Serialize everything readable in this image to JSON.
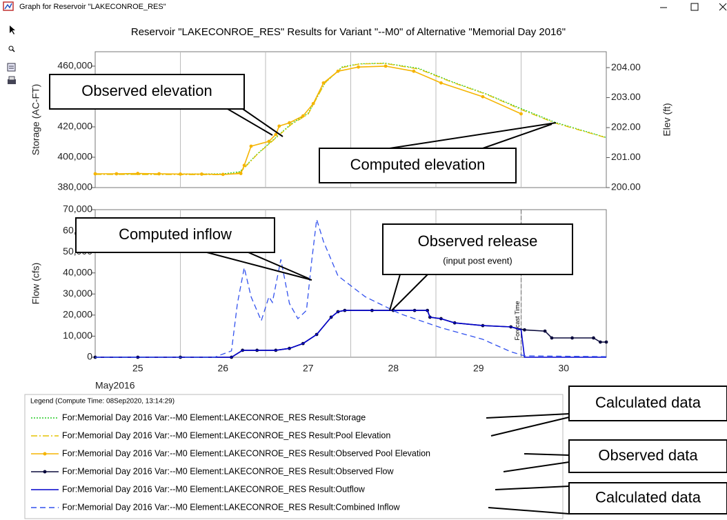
{
  "window": {
    "title": "Graph for Reservoir \"LAKECONROE_RES\""
  },
  "chart_data": [
    {
      "type": "line",
      "title": "Reservoir \"LAKECONROE_RES\" Results for Variant \"--M0\" of Alternative \"Memorial Day 2016\"",
      "ylabel": "Storage (AC-FT)",
      "y2label": "Elev (ft)",
      "xlim": [
        25,
        31
      ],
      "xgrid": [
        26,
        27,
        28,
        29,
        30
      ],
      "ylim": [
        380000,
        469500
      ],
      "yticks": [
        {
          "value": 380000,
          "label": "380,000"
        },
        {
          "value": 400000,
          "label": "400,000"
        },
        {
          "value": 420000,
          "label": "420,000"
        },
        {
          "value": 440000,
          "label": "440,000"
        },
        {
          "value": 460000,
          "label": "460,000"
        }
      ],
      "y2lim": [
        200,
        204.53
      ],
      "y2ticks": [
        {
          "value": 200,
          "label": "200.00"
        },
        {
          "value": 201,
          "label": "201.00"
        },
        {
          "value": 202,
          "label": "202.00"
        },
        {
          "value": 203,
          "label": "203.00"
        },
        {
          "value": 204,
          "label": "204.00"
        }
      ],
      "series": [
        {
          "name": "For:Memorial Day 2016 Var:--M0 Element:LAKECONROE_RES Result:Storage",
          "color": "#22cc22",
          "style": "dotted",
          "marker": false,
          "x": [
            25,
            26.5,
            26.7,
            26.9,
            27.1,
            27.3,
            27.5,
            27.7,
            27.9,
            28.1,
            28.4,
            28.8,
            29.2,
            29.6,
            30.0,
            30.4,
            31.0
          ],
          "values": [
            389000,
            389000,
            390500,
            402000,
            412000,
            422000,
            429000,
            449000,
            459500,
            461500,
            462000,
            458500,
            449500,
            441500,
            432000,
            423000,
            413000
          ]
        },
        {
          "name": "For:Memorial Day 2016 Var:--M0 Element:LAKECONROE_RES Result:Pool Elevation",
          "color": "#e6c200",
          "style": "dashdot",
          "marker": false,
          "axis": "y2",
          "x": [
            25,
            26.5,
            26.7,
            26.9,
            27.1,
            27.3,
            27.5,
            27.7,
            27.9,
            28.1,
            28.4,
            28.8,
            29.2,
            29.6,
            30.0,
            30.4,
            31.0
          ],
          "values": [
            200.44,
            200.43,
            200.5,
            201.1,
            201.6,
            202.1,
            202.45,
            203.5,
            204.0,
            204.12,
            204.14,
            203.95,
            203.5,
            203.1,
            202.6,
            202.15,
            201.66
          ]
        },
        {
          "name": "For:Memorial Day 2016 Var:--M0 Element:LAKECONROE_RES Result:Observed Pool Elevation",
          "color": "#f5b400",
          "style": "solid",
          "marker": true,
          "axis": "y2",
          "x": [
            25,
            25.25,
            25.5,
            25.75,
            26,
            26.25,
            26.5,
            26.71,
            26.75,
            26.83,
            27.04,
            27.12,
            27.16,
            27.28,
            27.44,
            27.56,
            27.68,
            27.85,
            28.09,
            28.41,
            28.74,
            29.06,
            29.55,
            30.0
          ],
          "values": [
            200.46,
            200.46,
            200.47,
            200.46,
            200.45,
            200.45,
            200.44,
            200.47,
            200.74,
            201.38,
            201.54,
            201.77,
            202.05,
            202.16,
            202.39,
            202.8,
            203.49,
            203.88,
            204.02,
            204.05,
            203.88,
            203.49,
            203.03,
            202.46
          ]
        }
      ]
    },
    {
      "type": "line",
      "ylabel": "Flow (cfs)",
      "xlabel": "May2016",
      "xlim": [
        25,
        31
      ],
      "xgrid": [
        26,
        27,
        28,
        29,
        30
      ],
      "xticks": [
        {
          "value": 25.5,
          "label": "25"
        },
        {
          "value": 26.5,
          "label": "26"
        },
        {
          "value": 27.5,
          "label": "27"
        },
        {
          "value": 28.5,
          "label": "28"
        },
        {
          "value": 29.5,
          "label": "29"
        },
        {
          "value": 30.5,
          "label": "30"
        }
      ],
      "ylim": [
        0,
        70000
      ],
      "yticks": [
        0,
        {
          "value": 10000,
          "label": "10,000"
        },
        {
          "value": 20000,
          "label": "20,000"
        },
        {
          "value": 30000,
          "label": "30,000"
        },
        {
          "value": 40000,
          "label": "40,000"
        },
        {
          "value": 50000,
          "label": "50,000"
        },
        {
          "value": 60000,
          "label": "60,000"
        },
        {
          "value": 70000,
          "label": "70,000"
        }
      ],
      "markers": [
        {
          "x": 30,
          "label": "Forecast Time"
        }
      ],
      "series": [
        {
          "name": "For:Memorial Day 2016 Var:--M0 Element:LAKECONROE_RES Result:Observed Flow",
          "color": "#0a0a3c",
          "style": "solid",
          "marker": true,
          "x": [
            25,
            25.5,
            26,
            26.6,
            26.73,
            26.9,
            27.12,
            27.28,
            27.44,
            27.6,
            27.77,
            27.85,
            27.93,
            28.25,
            28.5,
            28.75,
            28.9,
            28.93,
            29.06,
            29.22,
            29.55,
            29.88,
            30.04,
            30.28,
            30.36,
            30.6,
            30.85,
            30.93,
            31
          ],
          "values": [
            0,
            0,
            0,
            0,
            3300,
            3300,
            3300,
            4200,
            6500,
            10800,
            19000,
            21600,
            22200,
            22200,
            22200,
            22200,
            22200,
            19000,
            18300,
            16300,
            15000,
            14400,
            13000,
            12400,
            9150,
            9150,
            9150,
            7200,
            7200
          ]
        },
        {
          "name": "For:Memorial Day 2016 Var:--M0 Element:LAKECONROE_RES Result:Outflow",
          "color": "#0000cc",
          "style": "solid",
          "marker": false,
          "x": [
            25,
            26.6,
            26.73,
            27.12,
            27.28,
            27.44,
            27.6,
            27.77,
            27.85,
            27.93,
            28.9,
            28.93,
            29.06,
            29.22,
            29.55,
            29.88,
            30.0,
            30.04,
            31
          ],
          "values": [
            0,
            0,
            3300,
            3300,
            4200,
            6500,
            10800,
            19000,
            21600,
            22200,
            22200,
            19000,
            18300,
            16300,
            15000,
            14400,
            13000,
            0,
            0
          ]
        },
        {
          "name": "For:Memorial Day 2016 Var:--M0 Element:LAKECONROE_RES Result:Combined Inflow",
          "color": "#3050ee",
          "style": "dashed",
          "marker": false,
          "x": [
            25,
            26.4,
            26.6,
            26.67,
            26.75,
            26.83,
            26.95,
            27.04,
            27.08,
            27.18,
            27.28,
            27.38,
            27.48,
            27.54,
            27.6,
            27.68,
            27.85,
            28.17,
            28.58,
            29.06,
            29.55,
            29.88,
            30.04,
            31
          ],
          "values": [
            0,
            0,
            3000,
            25500,
            42500,
            28700,
            17300,
            28700,
            26000,
            46400,
            25500,
            18300,
            22200,
            45100,
            65400,
            54900,
            38600,
            28700,
            20600,
            14000,
            8500,
            2600,
            650,
            300
          ]
        }
      ]
    }
  ],
  "legend": {
    "title": "Legend (Compute Time: 08Sep2020, 13:14:29)"
  },
  "annotations": [
    {
      "text": "Observed elevation"
    },
    {
      "text": "Computed elevation"
    },
    {
      "text": "Computed inflow"
    },
    {
      "text": "Observed release",
      "subtext": "(input post event)"
    },
    {
      "text": "Calculated data"
    },
    {
      "text": "Observed data"
    },
    {
      "text": "Calculated data"
    }
  ]
}
